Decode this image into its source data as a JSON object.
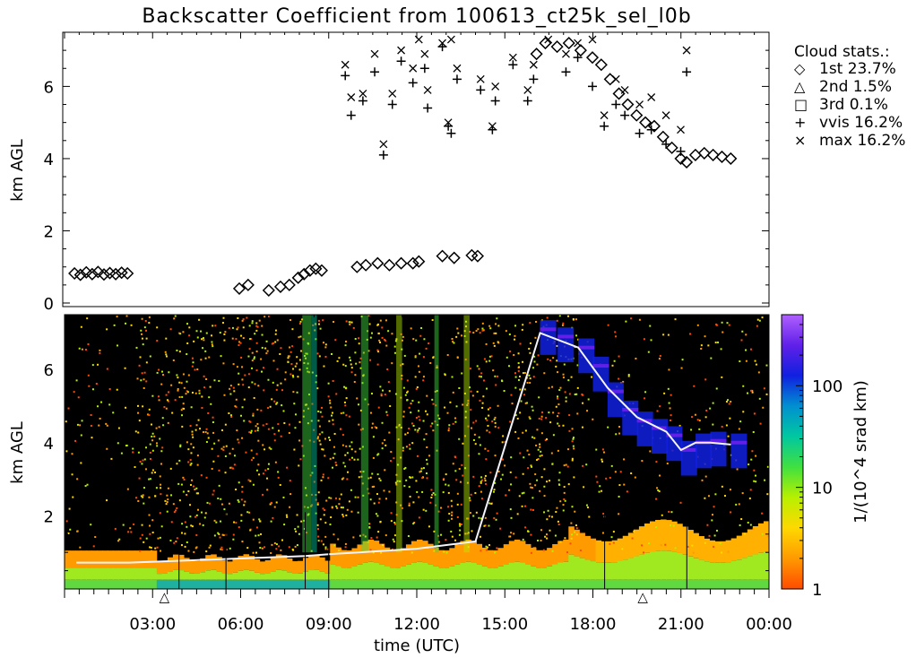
{
  "title": "Backscatter Coefficient from 100613_ct25k_sel_l0b",
  "chart_data": [
    {
      "type": "scatter",
      "panel": "cloud-base-heights",
      "ylabel": "km AGL",
      "ylim": [
        0,
        7.5
      ],
      "xlim_hours": [
        0,
        24
      ],
      "y_ticks": [
        "0",
        "2",
        "4",
        "6"
      ],
      "legend": {
        "placement": "right",
        "title": "Cloud stats.:",
        "entries": [
          {
            "marker": "◇",
            "label": "1st 23.7%"
          },
          {
            "marker": "△",
            "label": "2nd  1.5%"
          },
          {
            "marker": "□",
            "label": "3rd  0.1%"
          },
          {
            "marker": "+",
            "label": "vvis 16.2%"
          },
          {
            "marker": "×",
            "label": "max 16.2%"
          }
        ]
      },
      "series": [
        {
          "name": "1st",
          "marker": "diamond",
          "points": [
            [
              0.4,
              0.82
            ],
            [
              0.6,
              0.78
            ],
            [
              0.8,
              0.85
            ],
            [
              1.0,
              0.8
            ],
            [
              1.2,
              0.86
            ],
            [
              1.4,
              0.79
            ],
            [
              1.6,
              0.83
            ],
            [
              1.8,
              0.8
            ],
            [
              2.0,
              0.84
            ],
            [
              2.2,
              0.82
            ],
            [
              6.0,
              0.4
            ],
            [
              6.3,
              0.5
            ],
            [
              7.0,
              0.35
            ],
            [
              7.4,
              0.45
            ],
            [
              7.7,
              0.5
            ],
            [
              8.0,
              0.7
            ],
            [
              8.2,
              0.8
            ],
            [
              8.4,
              0.9
            ],
            [
              8.6,
              0.95
            ],
            [
              8.8,
              0.9
            ],
            [
              10.0,
              1.0
            ],
            [
              10.3,
              1.05
            ],
            [
              10.7,
              1.1
            ],
            [
              11.1,
              1.05
            ],
            [
              11.5,
              1.1
            ],
            [
              11.9,
              1.1
            ],
            [
              12.1,
              1.15
            ],
            [
              12.9,
              1.3
            ],
            [
              13.3,
              1.25
            ],
            [
              13.9,
              1.32
            ],
            [
              14.1,
              1.3
            ],
            [
              16.1,
              6.9
            ],
            [
              16.4,
              7.2
            ],
            [
              16.8,
              7.1
            ],
            [
              17.2,
              7.2
            ],
            [
              17.6,
              7.0
            ],
            [
              18.0,
              6.8
            ],
            [
              18.3,
              6.6
            ],
            [
              18.6,
              6.2
            ],
            [
              18.9,
              5.8
            ],
            [
              19.2,
              5.5
            ],
            [
              19.5,
              5.2
            ],
            [
              19.8,
              5.0
            ],
            [
              20.1,
              4.9
            ],
            [
              20.4,
              4.6
            ],
            [
              20.7,
              4.3
            ],
            [
              21.0,
              4.0
            ],
            [
              21.2,
              3.9
            ],
            [
              21.5,
              4.1
            ],
            [
              21.8,
              4.15
            ],
            [
              22.1,
              4.1
            ],
            [
              22.4,
              4.05
            ],
            [
              22.7,
              4.0
            ]
          ]
        },
        {
          "name": "vvis",
          "marker": "plus",
          "points": [
            [
              9.6,
              6.3
            ],
            [
              9.8,
              5.2
            ],
            [
              10.2,
              5.6
            ],
            [
              10.6,
              6.4
            ],
            [
              10.9,
              4.1
            ],
            [
              11.2,
              5.5
            ],
            [
              11.5,
              6.7
            ],
            [
              11.9,
              6.1
            ],
            [
              12.3,
              6.5
            ],
            [
              12.4,
              5.4
            ],
            [
              12.9,
              7.1
            ],
            [
              13.1,
              4.9
            ],
            [
              13.2,
              4.7
            ],
            [
              13.4,
              6.2
            ],
            [
              14.2,
              5.9
            ],
            [
              14.6,
              4.8
            ],
            [
              14.7,
              5.6
            ],
            [
              15.3,
              6.6
            ],
            [
              15.8,
              5.6
            ],
            [
              16.0,
              6.2
            ],
            [
              17.1,
              6.4
            ],
            [
              17.5,
              6.8
            ],
            [
              18.0,
              6.0
            ],
            [
              18.4,
              4.9
            ],
            [
              18.8,
              5.5
            ],
            [
              19.1,
              5.2
            ],
            [
              19.6,
              4.7
            ],
            [
              20.0,
              4.8
            ],
            [
              20.5,
              4.4
            ],
            [
              21.0,
              4.2
            ],
            [
              21.2,
              6.4
            ]
          ]
        },
        {
          "name": "max",
          "marker": "cross",
          "points": [
            [
              9.6,
              6.6
            ],
            [
              9.8,
              5.7
            ],
            [
              10.2,
              5.8
            ],
            [
              10.6,
              6.9
            ],
            [
              10.9,
              4.4
            ],
            [
              11.2,
              5.8
            ],
            [
              11.5,
              7.0
            ],
            [
              11.9,
              6.5
            ],
            [
              12.1,
              7.3
            ],
            [
              12.3,
              6.9
            ],
            [
              12.4,
              5.9
            ],
            [
              12.9,
              7.2
            ],
            [
              13.1,
              5.0
            ],
            [
              13.2,
              7.3
            ],
            [
              13.4,
              6.5
            ],
            [
              14.2,
              6.2
            ],
            [
              14.6,
              4.9
            ],
            [
              14.7,
              6.0
            ],
            [
              15.3,
              6.8
            ],
            [
              15.8,
              5.9
            ],
            [
              16.0,
              6.6
            ],
            [
              16.5,
              7.3
            ],
            [
              17.1,
              6.9
            ],
            [
              17.5,
              7.2
            ],
            [
              18.0,
              7.3
            ],
            [
              18.4,
              5.2
            ],
            [
              18.8,
              6.2
            ],
            [
              19.1,
              5.9
            ],
            [
              19.6,
              5.5
            ],
            [
              20.0,
              5.7
            ],
            [
              20.5,
              5.2
            ],
            [
              21.0,
              4.8
            ],
            [
              21.2,
              7.0
            ]
          ]
        }
      ]
    },
    {
      "type": "heatmap",
      "panel": "backscatter-profile",
      "ylabel": "km AGL",
      "xlabel": "time (UTC)",
      "ylim": [
        0,
        7.5
      ],
      "xlim_hours": [
        0,
        24
      ],
      "y_ticks": [
        "2",
        "4",
        "6"
      ],
      "x_ticks": [
        "03:00",
        "06:00",
        "09:00",
        "12:00",
        "15:00",
        "18:00",
        "21:00",
        "00:00"
      ],
      "x_marker_labels": [
        "△",
        "△"
      ],
      "x_marker_hours": [
        3.4,
        19.7
      ],
      "cloud_trace": [
        [
          0.4,
          0.72
        ],
        [
          2.2,
          0.72
        ],
        [
          8.2,
          0.9
        ],
        [
          9.0,
          0.95
        ],
        [
          10.0,
          1.0
        ],
        [
          12.0,
          1.1
        ],
        [
          14.0,
          1.3
        ],
        [
          16.2,
          7.0
        ],
        [
          17.5,
          6.6
        ],
        [
          18.5,
          5.5
        ],
        [
          19.5,
          4.7
        ],
        [
          20.5,
          4.3
        ],
        [
          21.0,
          3.8
        ],
        [
          21.5,
          4.0
        ],
        [
          22.0,
          4.0
        ],
        [
          22.7,
          3.95
        ]
      ],
      "colorbar": {
        "label": "1/(10^4 srad km)",
        "scale": "log",
        "range": [
          1,
          500
        ],
        "tick_labels": [
          "1",
          "10",
          "100"
        ],
        "colors": [
          "#ff4b00",
          "#ff9a00",
          "#ffd800",
          "#b8f000",
          "#40e040",
          "#00c8a0",
          "#0090d0",
          "#1020e0",
          "#6020e8",
          "#b060ff"
        ]
      }
    }
  ]
}
